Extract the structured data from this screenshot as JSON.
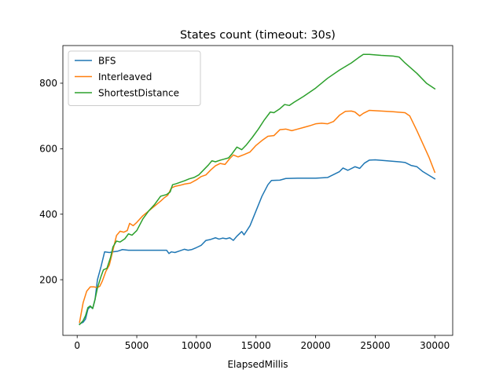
{
  "chart_data": {
    "type": "line",
    "title": "States count (timeout: 30s)",
    "xlabel": "ElapsedMillis",
    "ylabel": "",
    "xlim": [
      -1200,
      31500
    ],
    "ylim": [
      30,
      915
    ],
    "xticks": [
      0,
      5000,
      10000,
      15000,
      20000,
      25000,
      30000
    ],
    "yticks": [
      200,
      400,
      600,
      800
    ],
    "grid": false,
    "legend_position": "upper-left",
    "series": [
      {
        "name": "BFS",
        "color": "#1f77b4",
        "points": [
          [
            200,
            65
          ],
          [
            500,
            70
          ],
          [
            700,
            80
          ],
          [
            900,
            110
          ],
          [
            1100,
            118
          ],
          [
            1300,
            112
          ],
          [
            1500,
            140
          ],
          [
            1700,
            200
          ],
          [
            2000,
            240
          ],
          [
            2300,
            285
          ],
          [
            2700,
            283
          ],
          [
            3000,
            285
          ],
          [
            3400,
            287
          ],
          [
            3800,
            292
          ],
          [
            4300,
            290
          ],
          [
            5000,
            290
          ],
          [
            6000,
            290
          ],
          [
            7000,
            290
          ],
          [
            7500,
            290
          ],
          [
            7700,
            280
          ],
          [
            7900,
            285
          ],
          [
            8200,
            283
          ],
          [
            8600,
            288
          ],
          [
            9000,
            293
          ],
          [
            9300,
            290
          ],
          [
            9600,
            292
          ],
          [
            10000,
            298
          ],
          [
            10400,
            305
          ],
          [
            10800,
            320
          ],
          [
            11200,
            323
          ],
          [
            11600,
            328
          ],
          [
            11900,
            324
          ],
          [
            12200,
            327
          ],
          [
            12500,
            325
          ],
          [
            12800,
            328
          ],
          [
            13100,
            320
          ],
          [
            13400,
            333
          ],
          [
            13800,
            347
          ],
          [
            14000,
            337
          ],
          [
            14500,
            365
          ],
          [
            15000,
            410
          ],
          [
            15500,
            455
          ],
          [
            16000,
            490
          ],
          [
            16300,
            503
          ],
          [
            17000,
            504
          ],
          [
            17500,
            509
          ],
          [
            18500,
            510
          ],
          [
            20000,
            510
          ],
          [
            21000,
            512
          ],
          [
            22000,
            530
          ],
          [
            22300,
            541
          ],
          [
            22700,
            534
          ],
          [
            23300,
            545
          ],
          [
            23700,
            540
          ],
          [
            24100,
            556
          ],
          [
            24500,
            565
          ],
          [
            25000,
            566
          ],
          [
            26000,
            563
          ],
          [
            27000,
            560
          ],
          [
            27500,
            558
          ],
          [
            28000,
            549
          ],
          [
            28500,
            545
          ],
          [
            29000,
            530
          ],
          [
            30000,
            508
          ]
        ]
      },
      {
        "name": "Interleaved",
        "color": "#ff7f0e",
        "points": [
          [
            200,
            70
          ],
          [
            500,
            130
          ],
          [
            800,
            165
          ],
          [
            1100,
            178
          ],
          [
            1400,
            178
          ],
          [
            1700,
            176
          ],
          [
            1900,
            180
          ],
          [
            2100,
            195
          ],
          [
            2400,
            225
          ],
          [
            2700,
            245
          ],
          [
            3000,
            290
          ],
          [
            3300,
            335
          ],
          [
            3600,
            348
          ],
          [
            3900,
            345
          ],
          [
            4200,
            350
          ],
          [
            4400,
            372
          ],
          [
            4700,
            365
          ],
          [
            5000,
            375
          ],
          [
            5500,
            395
          ],
          [
            6000,
            410
          ],
          [
            6500,
            425
          ],
          [
            7000,
            440
          ],
          [
            7300,
            450
          ],
          [
            7600,
            458
          ],
          [
            7900,
            480
          ],
          [
            8200,
            485
          ],
          [
            8600,
            488
          ],
          [
            9000,
            492
          ],
          [
            9500,
            495
          ],
          [
            10000,
            505
          ],
          [
            10400,
            515
          ],
          [
            10800,
            520
          ],
          [
            11200,
            535
          ],
          [
            11600,
            548
          ],
          [
            12000,
            555
          ],
          [
            12400,
            552
          ],
          [
            12800,
            570
          ],
          [
            13100,
            581
          ],
          [
            13500,
            575
          ],
          [
            14000,
            582
          ],
          [
            14500,
            590
          ],
          [
            15000,
            610
          ],
          [
            15500,
            625
          ],
          [
            16000,
            638
          ],
          [
            16500,
            640
          ],
          [
            17000,
            658
          ],
          [
            17500,
            660
          ],
          [
            18000,
            655
          ],
          [
            18500,
            660
          ],
          [
            19000,
            665
          ],
          [
            19500,
            670
          ],
          [
            20000,
            676
          ],
          [
            20500,
            678
          ],
          [
            21000,
            676
          ],
          [
            21500,
            683
          ],
          [
            22000,
            702
          ],
          [
            22500,
            714
          ],
          [
            23000,
            715
          ],
          [
            23300,
            712
          ],
          [
            23700,
            700
          ],
          [
            24000,
            708
          ],
          [
            24500,
            717
          ],
          [
            25500,
            715
          ],
          [
            26500,
            713
          ],
          [
            27500,
            710
          ],
          [
            27900,
            700
          ],
          [
            28500,
            655
          ],
          [
            29500,
            575
          ],
          [
            30000,
            528
          ]
        ]
      },
      {
        "name": "ShortestDistance",
        "color": "#2ca02c",
        "points": [
          [
            200,
            63
          ],
          [
            500,
            75
          ],
          [
            700,
            90
          ],
          [
            900,
            115
          ],
          [
            1100,
            120
          ],
          [
            1300,
            112
          ],
          [
            1500,
            140
          ],
          [
            1700,
            175
          ],
          [
            2000,
            210
          ],
          [
            2200,
            230
          ],
          [
            2500,
            235
          ],
          [
            2800,
            268
          ],
          [
            3000,
            300
          ],
          [
            3300,
            318
          ],
          [
            3600,
            315
          ],
          [
            4000,
            325
          ],
          [
            4300,
            340
          ],
          [
            4600,
            336
          ],
          [
            5000,
            350
          ],
          [
            5500,
            385
          ],
          [
            6000,
            410
          ],
          [
            6500,
            430
          ],
          [
            7000,
            455
          ],
          [
            7500,
            460
          ],
          [
            7800,
            468
          ],
          [
            8000,
            490
          ],
          [
            8300,
            493
          ],
          [
            8600,
            497
          ],
          [
            9000,
            502
          ],
          [
            9400,
            508
          ],
          [
            9800,
            512
          ],
          [
            10200,
            520
          ],
          [
            10600,
            535
          ],
          [
            11000,
            550
          ],
          [
            11300,
            563
          ],
          [
            11600,
            560
          ],
          [
            12000,
            565
          ],
          [
            12300,
            568
          ],
          [
            12700,
            572
          ],
          [
            13000,
            585
          ],
          [
            13400,
            605
          ],
          [
            13800,
            597
          ],
          [
            14200,
            612
          ],
          [
            14700,
            635
          ],
          [
            15200,
            660
          ],
          [
            15700,
            688
          ],
          [
            16200,
            712
          ],
          [
            16500,
            710
          ],
          [
            17000,
            722
          ],
          [
            17400,
            735
          ],
          [
            17800,
            732
          ],
          [
            18200,
            742
          ],
          [
            19000,
            760
          ],
          [
            20000,
            785
          ],
          [
            21000,
            815
          ],
          [
            22000,
            840
          ],
          [
            23000,
            862
          ],
          [
            23600,
            878
          ],
          [
            24000,
            888
          ],
          [
            24500,
            888
          ],
          [
            25500,
            885
          ],
          [
            26500,
            883
          ],
          [
            27000,
            880
          ],
          [
            27500,
            862
          ],
          [
            28500,
            830
          ],
          [
            29300,
            800
          ],
          [
            30000,
            783
          ]
        ]
      }
    ]
  }
}
